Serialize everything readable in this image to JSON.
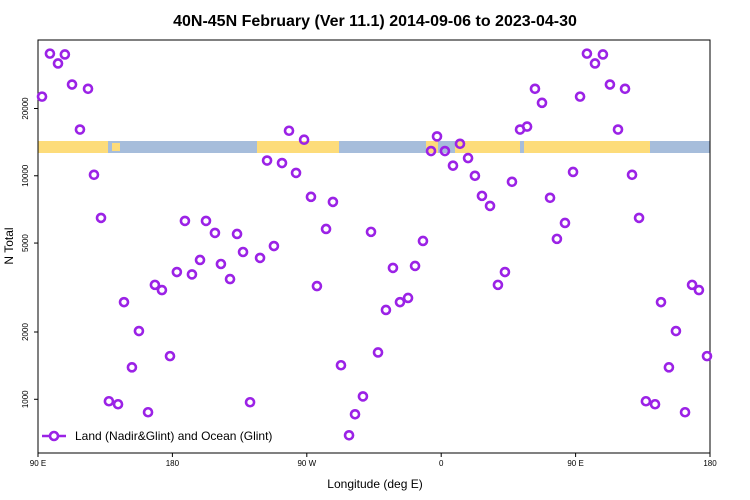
{
  "chart_data": {
    "type": "scatter",
    "title": "40N-45N February (Ver 11.1)   2014-09-06 to 2023-04-30",
    "x_label": "Longitude (deg E)",
    "y_label": "N Total",
    "xlim": [
      90,
      540
    ],
    "xticks": [
      {
        "value": 90,
        "label": "90 E"
      },
      {
        "value": 180,
        "label": "180"
      },
      {
        "value": 270,
        "label": "90 W"
      },
      {
        "value": 360,
        "label": "0"
      },
      {
        "value": 450,
        "label": "90 E"
      },
      {
        "value": 540,
        "label": "180"
      }
    ],
    "ylim": [
      575,
      40500
    ],
    "yticks": [
      1000,
      2000,
      5000,
      10000,
      20000
    ],
    "log_y": true,
    "legend": "lower left",
    "x": [
      92.7,
      98,
      103.4,
      108,
      112.8,
      118.1,
      123.5,
      127.5,
      132.2,
      137.5,
      143.6,
      147.6,
      152.9,
      157.6,
      163.7,
      168.3,
      173,
      178.4,
      183,
      188.4,
      193.1,
      198.5,
      202.5,
      208.5,
      212.5,
      218.6,
      223.3,
      227.3,
      232,
      238.7,
      243.4,
      248,
      253.4,
      258.1,
      262.8,
      268.2,
      272.8,
      276.8,
      282.9,
      287.5,
      292.9,
      298.3,
      302.3,
      307.6,
      313,
      317.7,
      323,
      327.7,
      332.4,
      337.8,
      342.5,
      347.8,
      353.2,
      357.2,
      362.5,
      367.9,
      372.6,
      378,
      382.6,
      387.3,
      392.7,
      398,
      402.7,
      407.4,
      412.8,
      417.5,
      422.8,
      427.5,
      432.9,
      437.5,
      442.9,
      448.3,
      453,
      457.6,
      463,
      468.3,
      473,
      478.4,
      483.1,
      487.8,
      492.5,
      497.1,
      503.2,
      507.2,
      512.5,
      517.2,
      523.3,
      528,
      532.6,
      538
    ],
    "series": [
      {
        "name": "Land (Nadir&Glint) and Ocean (Glint)",
        "color": "#9b22e6",
        "values": [
          22600,
          35200,
          31800,
          34900,
          25600,
          16100,
          24500,
          10100,
          6480,
          980,
          950,
          2720,
          1390,
          2020,
          875,
          3250,
          3080,
          1560,
          3710,
          6280,
          3620,
          4200,
          6280,
          5550,
          4030,
          3450,
          5490,
          4560,
          970,
          4290,
          11700,
          4850,
          11400,
          15900,
          10300,
          14500,
          8050,
          3210,
          5780,
          7640,
          1420,
          690,
          857,
          1030,
          5610,
          1620,
          2510,
          3870,
          2720,
          2840,
          3950,
          5110,
          12900,
          15000,
          12900,
          11100,
          13900,
          12000,
          10000,
          8130,
          7330,
          3250,
          3710,
          9400,
          16100,
          16600,
          24500,
          21200,
          7970,
          5220,
          6150,
          10400,
          22600,
          35200,
          31800,
          34900,
          25600,
          16100,
          24500,
          10100,
          6480,
          980,
          950,
          2720,
          1390,
          2020,
          875,
          3250,
          3080,
          1560
        ]
      }
    ]
  }
}
